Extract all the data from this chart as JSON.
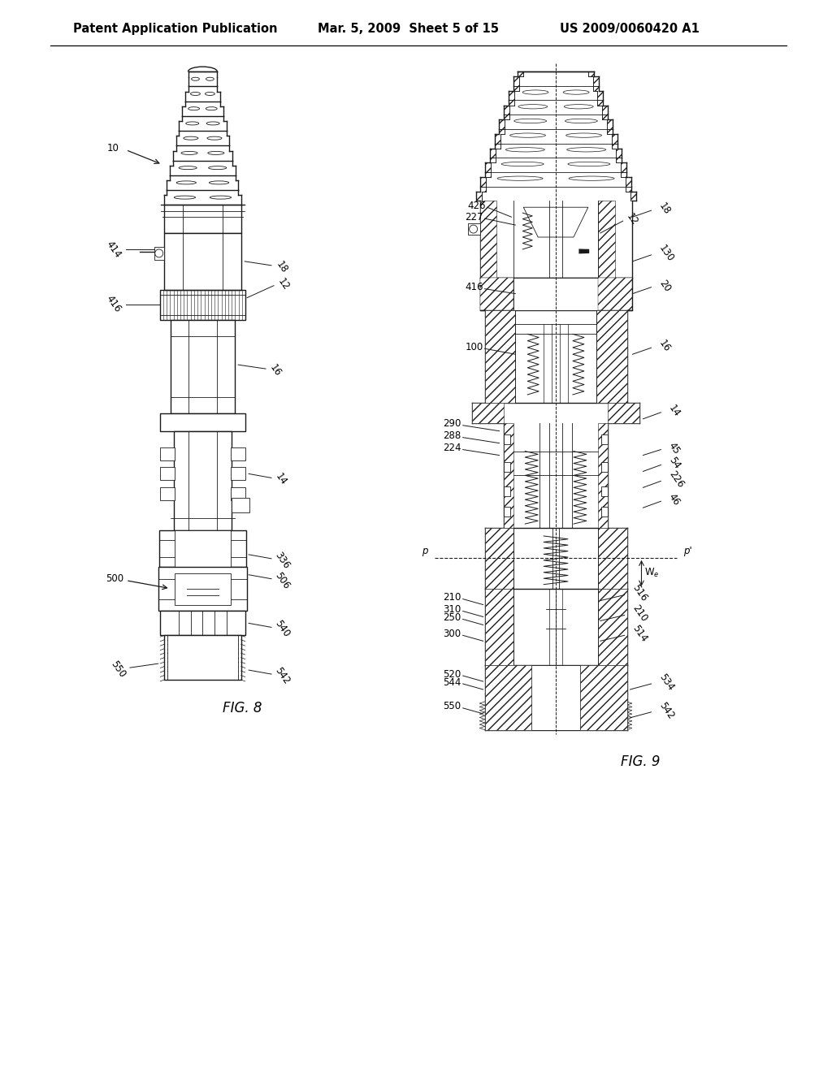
{
  "background_color": "#ffffff",
  "header_left": "Patent Application Publication",
  "header_center": "Mar. 5, 2009  Sheet 5 of 15",
  "header_right": "US 2009/0060420 A1",
  "header_fontsize": 10.5,
  "fig8_label": "FIG. 8",
  "fig9_label": "FIG. 9",
  "line_color": "#1a1a1a",
  "label_fontsize": 8.5,
  "fig_label_fontsize": 11
}
